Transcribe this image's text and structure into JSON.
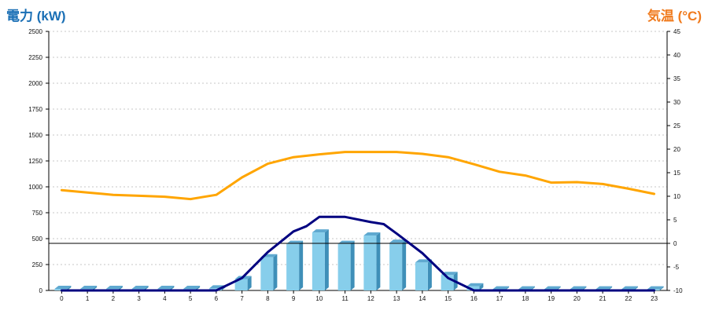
{
  "chart_data": {
    "type": "bar+line",
    "title_left": "電力 (kW)",
    "title_right": "気温 (°C)",
    "categories": [
      "0",
      "1",
      "2",
      "3",
      "4",
      "5",
      "6",
      "7",
      "8",
      "9",
      "10",
      "11",
      "12",
      "13",
      "14",
      "15",
      "16",
      "17",
      "18",
      "19",
      "20",
      "21",
      "22",
      "23"
    ],
    "left_axis": {
      "ylim": [
        0,
        2500
      ],
      "ticks": [
        0,
        250,
        500,
        750,
        1000,
        1250,
        1500,
        1750,
        2000,
        2250,
        2500
      ]
    },
    "right_axis": {
      "ylim": [
        -10,
        45
      ],
      "ticks": [
        -10,
        -5,
        0,
        5,
        10,
        15,
        20,
        25,
        30,
        35,
        40,
        45
      ]
    },
    "grid": true,
    "reference_line": {
      "axis": "right",
      "value": 0
    },
    "series": [
      {
        "type": "bar",
        "axis": "left",
        "color": "#87ceeb",
        "values": [
          15,
          15,
          15,
          15,
          15,
          15,
          20,
          110,
          320,
          450,
          560,
          450,
          530,
          460,
          270,
          150,
          40,
          10,
          10,
          10,
          10,
          10,
          10,
          10
        ]
      },
      {
        "type": "line",
        "axis": "left",
        "color": "#000080",
        "x": [
          0,
          1,
          2,
          3,
          4,
          5,
          6,
          7,
          8,
          9,
          9.5,
          10,
          11,
          12,
          12.5,
          13,
          14,
          15,
          16,
          17,
          18,
          19,
          20,
          21,
          22,
          23
        ],
        "values": [
          0,
          0,
          0,
          0,
          0,
          0,
          0,
          120,
          370,
          570,
          620,
          710,
          710,
          660,
          640,
          550,
          360,
          120,
          0,
          0,
          0,
          0,
          0,
          0,
          0,
          0
        ]
      },
      {
        "type": "line",
        "axis": "right",
        "color": "#ffa500",
        "x": [
          0,
          1,
          2,
          3,
          4,
          5,
          6,
          7,
          8,
          9,
          10,
          11,
          12,
          13,
          14,
          15,
          16,
          17,
          18,
          19,
          20,
          21,
          22,
          23
        ],
        "values": [
          11.3,
          10.8,
          10.3,
          10.1,
          9.9,
          9.4,
          10.3,
          14.0,
          16.9,
          18.3,
          18.9,
          19.4,
          19.4,
          19.4,
          19.0,
          18.3,
          16.8,
          15.2,
          14.4,
          12.9,
          13.0,
          12.6,
          11.6,
          10.5
        ]
      }
    ]
  }
}
